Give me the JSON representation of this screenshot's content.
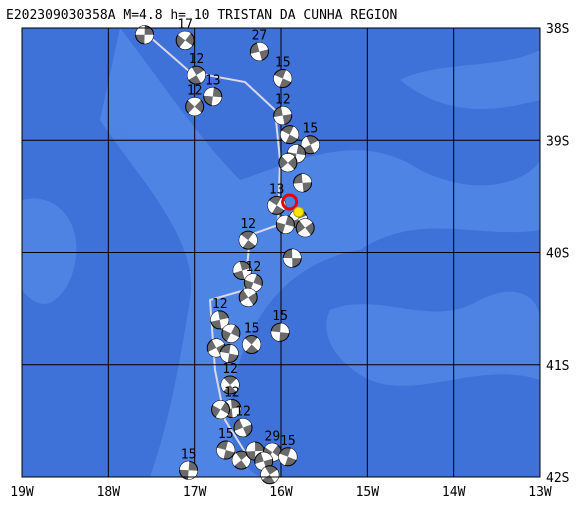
{
  "map": {
    "title": "E202309030358A M=4.8 h= 10 TRISTAN DA CUNHA REGION",
    "xlim": [
      -19,
      -13
    ],
    "ylim": [
      -42,
      -38
    ],
    "xticks": [
      {
        "value": -19,
        "label": "19W"
      },
      {
        "value": -18,
        "label": "18W"
      },
      {
        "value": -17,
        "label": "17W"
      },
      {
        "value": -16,
        "label": "16W"
      },
      {
        "value": -15,
        "label": "15W"
      },
      {
        "value": -14,
        "label": "14W"
      },
      {
        "value": -13,
        "label": "13W"
      }
    ],
    "yticks": [
      {
        "value": -38,
        "label": "38S"
      },
      {
        "value": -39,
        "label": "39S"
      },
      {
        "value": -40,
        "label": "40S"
      },
      {
        "value": -41,
        "label": "41S"
      },
      {
        "value": -42,
        "label": "42S"
      }
    ],
    "events": [
      {
        "lon": -17.58,
        "lat": -38.06
      },
      {
        "lon": -17.11,
        "lat": -38.11,
        "depth": "17"
      },
      {
        "lon": -16.25,
        "lat": -38.21,
        "depth": "27"
      },
      {
        "lon": -15.98,
        "lat": -38.45,
        "depth": "15"
      },
      {
        "lon": -16.98,
        "lat": -38.42,
        "depth": "12"
      },
      {
        "lon": -16.79,
        "lat": -38.61,
        "depth": "13"
      },
      {
        "lon": -17.0,
        "lat": -38.7,
        "depth": "12"
      },
      {
        "lon": -15.98,
        "lat": -38.78,
        "depth": "12"
      },
      {
        "lon": -15.9,
        "lat": -38.95
      },
      {
        "lon": -15.66,
        "lat": -39.04,
        "depth": "15"
      },
      {
        "lon": -15.82,
        "lat": -39.12
      },
      {
        "lon": -15.92,
        "lat": -39.2
      },
      {
        "lon": -15.75,
        "lat": -39.38
      },
      {
        "lon": -16.05,
        "lat": -39.58,
        "depth": "13"
      },
      {
        "lon": -15.8,
        "lat": -39.7
      },
      {
        "lon": -15.95,
        "lat": -39.75
      },
      {
        "lon": -15.72,
        "lat": -39.78
      },
      {
        "lon": -15.87,
        "lat": -40.05
      },
      {
        "lon": -16.38,
        "lat": -39.89,
        "depth": "12"
      },
      {
        "lon": -16.45,
        "lat": -40.16
      },
      {
        "lon": -16.32,
        "lat": -40.27,
        "depth": "12"
      },
      {
        "lon": -16.38,
        "lat": -40.4
      },
      {
        "lon": -16.01,
        "lat": -40.71,
        "depth": "15"
      },
      {
        "lon": -16.34,
        "lat": -40.82,
        "depth": "15"
      },
      {
        "lon": -16.71,
        "lat": -40.6,
        "depth": "12"
      },
      {
        "lon": -16.58,
        "lat": -40.72
      },
      {
        "lon": -16.75,
        "lat": -40.85
      },
      {
        "lon": -16.6,
        "lat": -40.9
      },
      {
        "lon": -16.59,
        "lat": -41.18,
        "depth": "12"
      },
      {
        "lon": -16.57,
        "lat": -41.39,
        "depth": "12"
      },
      {
        "lon": -16.7,
        "lat": -41.4
      },
      {
        "lon": -16.44,
        "lat": -41.56,
        "depth": "12"
      },
      {
        "lon": -16.64,
        "lat": -41.76,
        "depth": "15"
      },
      {
        "lon": -16.46,
        "lat": -41.85
      },
      {
        "lon": -16.3,
        "lat": -41.77
      },
      {
        "lon": -16.1,
        "lat": -41.78,
        "depth": "29"
      },
      {
        "lon": -16.2,
        "lat": -41.86
      },
      {
        "lon": -15.92,
        "lat": -41.82,
        "depth": "15"
      },
      {
        "lon": -16.13,
        "lat": -41.98
      },
      {
        "lon": -17.07,
        "lat": -41.94,
        "depth": "15"
      }
    ],
    "mainshock": {
      "lon": -15.9,
      "lat": -39.55
    }
  }
}
